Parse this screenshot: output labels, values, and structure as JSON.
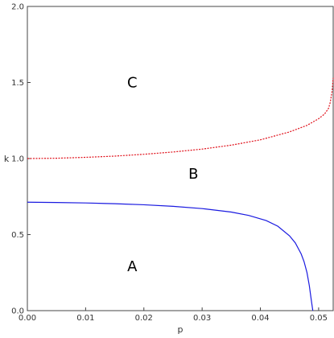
{
  "chart_data": {
    "type": "line",
    "title": "",
    "xlabel": "p",
    "ylabel": "k",
    "xlim": [
      0,
      0.0525
    ],
    "ylim": [
      0,
      2.0
    ],
    "x_ticks": [
      "0.00",
      "0.01",
      "0.02",
      "0.03",
      "0.04",
      "0.05"
    ],
    "x_tick_values": [
      0,
      0.01,
      0.02,
      0.03,
      0.04,
      0.05
    ],
    "y_ticks": [
      "0.0",
      "0.5",
      "1.0",
      "1.5",
      "2.0"
    ],
    "y_tick_values": [
      0,
      0.5,
      1.0,
      1.5,
      2.0
    ],
    "grid": false,
    "series": [
      {
        "color": "#e0101a",
        "dash": "dashed",
        "points": [
          [
            0,
            1.0
          ],
          [
            0.005,
            1.002
          ],
          [
            0.01,
            1.008
          ],
          [
            0.015,
            1.016
          ],
          [
            0.02,
            1.028
          ],
          [
            0.025,
            1.043
          ],
          [
            0.03,
            1.062
          ],
          [
            0.035,
            1.088
          ],
          [
            0.04,
            1.123
          ],
          [
            0.045,
            1.175
          ],
          [
            0.048,
            1.218
          ],
          [
            0.05,
            1.262
          ],
          [
            0.051,
            1.292
          ],
          [
            0.0517,
            1.33
          ],
          [
            0.052,
            1.37
          ],
          [
            0.0523,
            1.44
          ],
          [
            0.0525,
            1.53
          ]
        ]
      },
      {
        "color": "#1a1ae0",
        "dash": "solid",
        "points": [
          [
            0,
            0.713
          ],
          [
            0.005,
            0.711
          ],
          [
            0.01,
            0.708
          ],
          [
            0.015,
            0.703
          ],
          [
            0.02,
            0.696
          ],
          [
            0.025,
            0.686
          ],
          [
            0.03,
            0.671
          ],
          [
            0.035,
            0.648
          ],
          [
            0.038,
            0.626
          ],
          [
            0.041,
            0.592
          ],
          [
            0.043,
            0.555
          ],
          [
            0.045,
            0.492
          ],
          [
            0.046,
            0.445
          ],
          [
            0.047,
            0.373
          ],
          [
            0.0475,
            0.322
          ],
          [
            0.048,
            0.25
          ],
          [
            0.0484,
            0.165
          ],
          [
            0.0487,
            0.08
          ],
          [
            0.049,
            0.0
          ]
        ]
      }
    ],
    "annotations": [
      {
        "text": "C",
        "x": 0.018,
        "y": 1.5
      },
      {
        "text": "B",
        "x": 0.0285,
        "y": 0.9
      },
      {
        "text": "A",
        "x": 0.018,
        "y": 0.29
      }
    ]
  }
}
